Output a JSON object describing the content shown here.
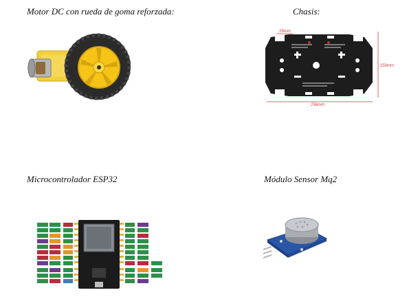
{
  "figures": {
    "motor": {
      "caption": "Motor DC con rueda de goma reforzada:"
    },
    "chassis": {
      "caption": "Chasis:",
      "dim_width_top": "29mm",
      "dim_height": "150mm",
      "dim_width": "256mm"
    },
    "esp32": {
      "caption": "Microcontrolador ESP32"
    },
    "mq2": {
      "caption": "Módulo Sensor Mq2"
    }
  },
  "colors": {
    "wheel_yellow": "#f6c417",
    "gearbox_yellow": "#f2cf3b",
    "chassis_black": "#1d1d1d",
    "dimension_red": "#d13c3c",
    "board_black": "#1b1b1b",
    "sensor_blue": "#2a56a8",
    "metal_gray": "#a9adb2"
  }
}
